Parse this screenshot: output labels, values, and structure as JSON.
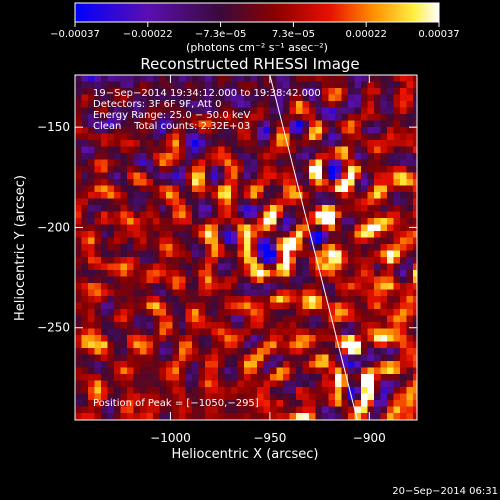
{
  "chart_data": {
    "type": "heatmap",
    "title": "Reconstructed RHESSI Image",
    "xlabel": "Heliocentric X (arcsec)",
    "ylabel": "Heliocentric Y (arcsec)",
    "xlim": [
      -1048,
      -876
    ],
    "ylim": [
      -296,
      -124
    ],
    "x_ticks": [
      -1000,
      -950,
      -900
    ],
    "x_tick_labels": [
      "−1000",
      "−950",
      "−900"
    ],
    "y_ticks": [
      -150,
      -200,
      -250
    ],
    "y_tick_labels": [
      "−150",
      "−200",
      "−250"
    ],
    "colorbar": {
      "range": [
        -0.00037,
        0.00037
      ],
      "tick_labels": [
        "−0.00037",
        "−0.00022",
        "−7.3e−05",
        "7.3e−05",
        "0.00022",
        "0.00037"
      ],
      "unit_label": "(photons cm⁻² s⁻¹ asec⁻²)",
      "colors": [
        "#0000ff",
        "#5a0fb0",
        "#3a0a3a",
        "#8a0000",
        "#e81000",
        "#ff9000",
        "#ffee40",
        "#ffffff"
      ]
    },
    "annotations": [
      "19−Sep−2014 19:34:12.000 to 19:38:42.000",
      "Detectors: 3F 6F 9F, Att 0",
      "Energy Range: 25.0 − 50.0 keV",
      "Clean    Total counts: 2.32E+03"
    ],
    "peak_label": "Position of Peak = [−1050,−295]",
    "limb_line": {
      "x": [
        -950,
        -906
      ],
      "y": [
        -124,
        -296
      ]
    },
    "footer_date": "20−Sep−2014 06:31"
  }
}
